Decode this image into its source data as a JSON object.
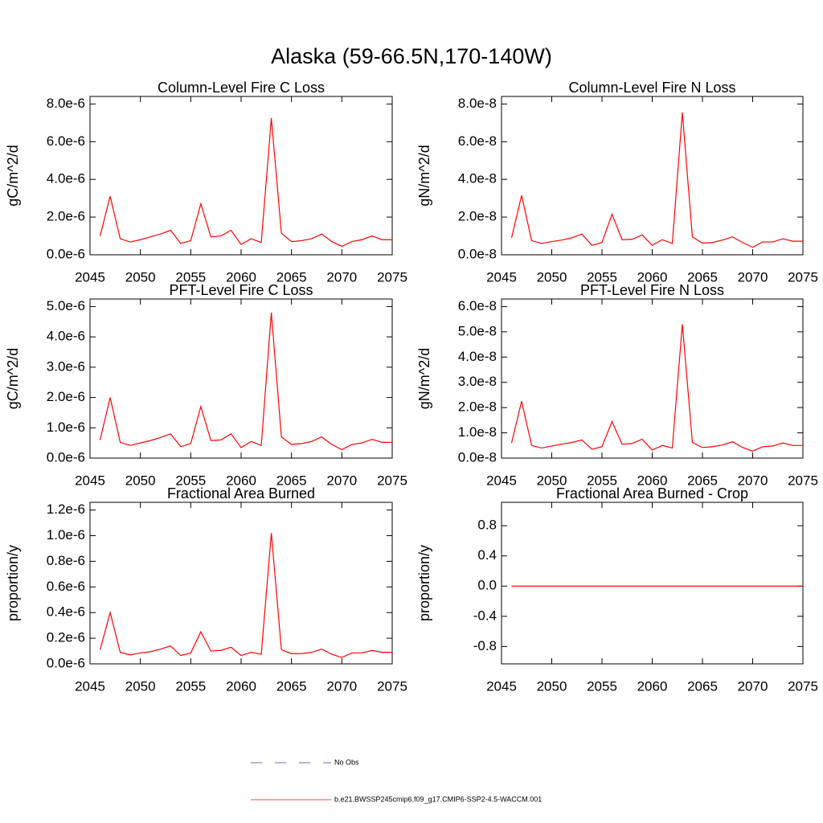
{
  "title": "Alaska (59-66.5N,170-140W)",
  "chart_data": [
    {
      "type": "line",
      "title": "Column-Level Fire C Loss",
      "ylabel": "gC/m^2/d",
      "color": "#ff0000",
      "x": [
        2046,
        2047,
        2048,
        2049,
        2050,
        2051,
        2052,
        2053,
        2054,
        2055,
        2056,
        2057,
        2058,
        2059,
        2060,
        2061,
        2062,
        2063,
        2064,
        2065,
        2066,
        2067,
        2068,
        2069,
        2070,
        2071,
        2072,
        2073,
        2074,
        2075
      ],
      "values": [
        1e-06,
        3.1e-06,
        8.5e-07,
        6.8e-07,
        8e-07,
        9.5e-07,
        1.1e-06,
        1.3e-06,
        6e-07,
        7.5e-07,
        2.7e-06,
        9.5e-07,
        1e-06,
        1.3e-06,
        5.5e-07,
        8.5e-07,
        6.5e-07,
        7.25e-06,
        1.15e-06,
        7e-07,
        7.5e-07,
        8.5e-07,
        1.1e-06,
        7e-07,
        4.5e-07,
        7e-07,
        8e-07,
        1e-06,
        8e-07,
        8e-07
      ],
      "xlim": [
        2045,
        2075
      ],
      "xticks": [
        2045,
        2050,
        2055,
        2060,
        2065,
        2070,
        2075
      ],
      "ylim": [
        0,
        8.4e-06
      ],
      "yticks": [
        {
          "value": 0,
          "label": "0.0e-6"
        },
        {
          "value": 2e-06,
          "label": "2.0e-6"
        },
        {
          "value": 4e-06,
          "label": "4.0e-6"
        },
        {
          "value": 6e-06,
          "label": "6.0e-6"
        },
        {
          "value": 8e-06,
          "label": "8.0e-6"
        }
      ]
    },
    {
      "type": "line",
      "title": "Column-Level Fire N Loss",
      "ylabel": "gN/m^2/d",
      "color": "#ff0000",
      "x": [
        2046,
        2047,
        2048,
        2049,
        2050,
        2051,
        2052,
        2053,
        2054,
        2055,
        2056,
        2057,
        2058,
        2059,
        2060,
        2061,
        2062,
        2063,
        2064,
        2065,
        2066,
        2067,
        2068,
        2069,
        2070,
        2071,
        2072,
        2073,
        2074,
        2075
      ],
      "values": [
        9e-09,
        3.15e-08,
        7.5e-09,
        6e-09,
        7e-09,
        7.8e-09,
        9e-09,
        1.1e-08,
        5e-09,
        6.5e-09,
        2.15e-08,
        8e-09,
        8.2e-09,
        1.05e-08,
        5e-09,
        8e-09,
        6e-09,
        7.55e-08,
        9.5e-09,
        6.2e-09,
        6.5e-09,
        7.8e-09,
        9.5e-09,
        6.5e-09,
        4e-09,
        6.8e-09,
        6.8e-09,
        8.5e-09,
        7.2e-09,
        7.2e-09
      ],
      "xlim": [
        2045,
        2075
      ],
      "xticks": [
        2045,
        2050,
        2055,
        2060,
        2065,
        2070,
        2075
      ],
      "ylim": [
        0,
        8.4e-08
      ],
      "yticks": [
        {
          "value": 0,
          "label": "0.0e-8"
        },
        {
          "value": 2e-08,
          "label": "2.0e-8"
        },
        {
          "value": 4e-08,
          "label": "4.0e-8"
        },
        {
          "value": 6e-08,
          "label": "6.0e-8"
        },
        {
          "value": 8e-08,
          "label": "8.0e-8"
        }
      ]
    },
    {
      "type": "line",
      "title": "PFT-Level Fire C Loss",
      "ylabel": "gC/m^2/d",
      "color": "#ff0000",
      "x": [
        2046,
        2047,
        2048,
        2049,
        2050,
        2051,
        2052,
        2053,
        2054,
        2055,
        2056,
        2057,
        2058,
        2059,
        2060,
        2061,
        2062,
        2063,
        2064,
        2065,
        2066,
        2067,
        2068,
        2069,
        2070,
        2071,
        2072,
        2073,
        2074,
        2075
      ],
      "values": [
        6e-07,
        2e-06,
        5.2e-07,
        4.2e-07,
        5e-07,
        5.8e-07,
        6.8e-07,
        8e-07,
        3.8e-07,
        4.8e-07,
        1.7e-06,
        5.8e-07,
        6e-07,
        8e-07,
        3.5e-07,
        5.5e-07,
        4.2e-07,
        4.8e-06,
        7e-07,
        4.5e-07,
        4.8e-07,
        5.5e-07,
        7e-07,
        4.5e-07,
        2.8e-07,
        4.5e-07,
        5e-07,
        6.2e-07,
        5.2e-07,
        5.2e-07
      ],
      "xlim": [
        2045,
        2075
      ],
      "xticks": [
        2045,
        2050,
        2055,
        2060,
        2065,
        2070,
        2075
      ],
      "ylim": [
        0,
        5.25e-06
      ],
      "yticks": [
        {
          "value": 0,
          "label": "0.0e-6"
        },
        {
          "value": 1e-06,
          "label": "1.0e-6"
        },
        {
          "value": 2e-06,
          "label": "2.0e-6"
        },
        {
          "value": 3e-06,
          "label": "3.0e-6"
        },
        {
          "value": 4e-06,
          "label": "4.0e-6"
        },
        {
          "value": 5e-06,
          "label": "5.0e-6"
        }
      ]
    },
    {
      "type": "line",
      "title": "PFT-Level Fire N Loss",
      "ylabel": "gN/m^2/d",
      "color": "#ff0000",
      "x": [
        2046,
        2047,
        2048,
        2049,
        2050,
        2051,
        2052,
        2053,
        2054,
        2055,
        2056,
        2057,
        2058,
        2059,
        2060,
        2061,
        2062,
        2063,
        2064,
        2065,
        2066,
        2067,
        2068,
        2069,
        2070,
        2071,
        2072,
        2073,
        2074,
        2075
      ],
      "values": [
        6e-09,
        2.25e-08,
        5e-09,
        4e-09,
        4.8e-09,
        5.5e-09,
        6.2e-09,
        7.2e-09,
        3.5e-09,
        4.5e-09,
        1.45e-08,
        5.5e-09,
        5.8e-09,
        7.5e-09,
        3.2e-09,
        5e-09,
        4e-09,
        5.3e-08,
        6.2e-09,
        4.2e-09,
        4.5e-09,
        5.2e-09,
        6.5e-09,
        4.2e-09,
        2.8e-09,
        4.5e-09,
        4.8e-09,
        6e-09,
        5e-09,
        5e-09
      ],
      "xlim": [
        2045,
        2075
      ],
      "xticks": [
        2045,
        2050,
        2055,
        2060,
        2065,
        2070,
        2075
      ],
      "ylim": [
        0,
        6.3e-08
      ],
      "yticks": [
        {
          "value": 0,
          "label": "0.0e-8"
        },
        {
          "value": 1e-08,
          "label": "1.0e-8"
        },
        {
          "value": 2e-08,
          "label": "2.0e-8"
        },
        {
          "value": 3e-08,
          "label": "3.0e-8"
        },
        {
          "value": 4e-08,
          "label": "4.0e-8"
        },
        {
          "value": 5e-08,
          "label": "5.0e-8"
        },
        {
          "value": 6e-08,
          "label": "6.0e-8"
        }
      ]
    },
    {
      "type": "line",
      "title": "Fractional Area Burned",
      "ylabel": "proportion/y",
      "color": "#ff0000",
      "x": [
        2046,
        2047,
        2048,
        2049,
        2050,
        2051,
        2052,
        2053,
        2054,
        2055,
        2056,
        2057,
        2058,
        2059,
        2060,
        2061,
        2062,
        2063,
        2064,
        2065,
        2066,
        2067,
        2068,
        2069,
        2070,
        2071,
        2072,
        2073,
        2074,
        2075
      ],
      "values": [
        1.1e-07,
        4e-07,
        9e-08,
        7e-08,
        8.5e-08,
        9.5e-08,
        1.15e-07,
        1.4e-07,
        6.5e-08,
        8.5e-08,
        2.5e-07,
        1e-07,
        1.05e-07,
        1.3e-07,
        6.5e-08,
        9e-08,
        7.5e-08,
        1.02e-06,
        1.1e-07,
        8e-08,
        8e-08,
        9e-08,
        1.15e-07,
        7.5e-08,
        5e-08,
        8.5e-08,
        8.5e-08,
        1.05e-07,
        9e-08,
        9e-08
      ],
      "xlim": [
        2045,
        2075
      ],
      "xticks": [
        2045,
        2050,
        2055,
        2060,
        2065,
        2070,
        2075
      ],
      "ylim": [
        0,
        1.26e-06
      ],
      "yticks": [
        {
          "value": 0,
          "label": "0.0e-6"
        },
        {
          "value": 2e-07,
          "label": "0.2e-6"
        },
        {
          "value": 4e-07,
          "label": "0.4e-6"
        },
        {
          "value": 6e-07,
          "label": "0.6e-6"
        },
        {
          "value": 8e-07,
          "label": "0.8e-6"
        },
        {
          "value": 1e-06,
          "label": "1.0e-6"
        },
        {
          "value": 1.2e-06,
          "label": "1.2e-6"
        }
      ]
    },
    {
      "type": "line",
      "title": "Fractional Area Burned - Crop",
      "ylabel": "proportion/y",
      "color": "#ff0000",
      "x": [
        2046,
        2047,
        2048,
        2049,
        2050,
        2051,
        2052,
        2053,
        2054,
        2055,
        2056,
        2057,
        2058,
        2059,
        2060,
        2061,
        2062,
        2063,
        2064,
        2065,
        2066,
        2067,
        2068,
        2069,
        2070,
        2071,
        2072,
        2073,
        2074,
        2075
      ],
      "values": [
        0,
        0,
        0,
        0,
        0,
        0,
        0,
        0,
        0,
        0,
        0,
        0,
        0,
        0,
        0,
        0,
        0,
        0,
        0,
        0,
        0,
        0,
        0,
        0,
        0,
        0,
        0,
        0,
        0,
        0
      ],
      "xlim": [
        2045,
        2075
      ],
      "xticks": [
        2045,
        2050,
        2055,
        2060,
        2065,
        2070,
        2075
      ],
      "ylim": [
        -1.03,
        1.11
      ],
      "yticks": [
        -0.8,
        -0.4,
        {
          "value": 0,
          "label": "0.0"
        },
        0.4,
        0.8
      ]
    }
  ],
  "legend": [
    {
      "name": "No Obs",
      "color": "#3a3ab0",
      "dashed": true
    },
    {
      "name": "b.e21.BWSSP245cmip6.f09_g17.CMIP6-SSP2-4.5-WACCM.001",
      "color": "#ff0000",
      "dashed": false
    }
  ]
}
